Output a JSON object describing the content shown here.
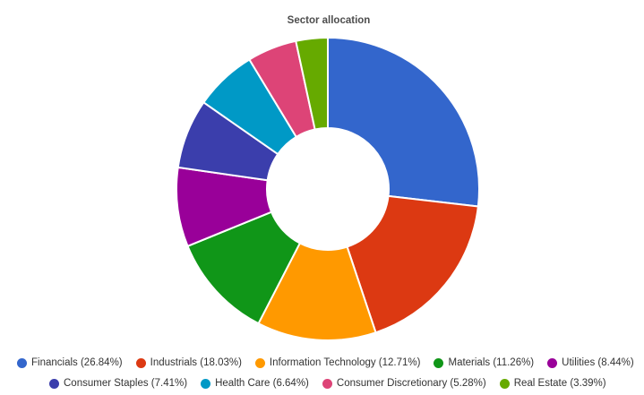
{
  "chart_data": {
    "type": "pie",
    "title": "Sector allocation",
    "donut": true,
    "legend_position": "bottom",
    "slices": [
      {
        "label": "Financials",
        "value": 26.84,
        "legend": "Financials (26.84%)",
        "color": "#3366cc"
      },
      {
        "label": "Industrials",
        "value": 18.03,
        "legend": "Industrials (18.03%)",
        "color": "#dc3912"
      },
      {
        "label": "Information Technology",
        "value": 12.71,
        "legend": "Information Technology (12.71%)",
        "color": "#ff9900"
      },
      {
        "label": "Materials",
        "value": 11.26,
        "legend": "Materials (11.26%)",
        "color": "#109618"
      },
      {
        "label": "Utilities",
        "value": 8.44,
        "legend": "Utilities (8.44%)",
        "color": "#990099"
      },
      {
        "label": "Consumer Staples",
        "value": 7.41,
        "legend": "Consumer Staples (7.41%)",
        "color": "#3b3eac"
      },
      {
        "label": "Health Care",
        "value": 6.64,
        "legend": "Health Care (6.64%)",
        "color": "#0099c6"
      },
      {
        "label": "Consumer Discretionary",
        "value": 5.28,
        "legend": "Consumer Discretionary (5.28%)",
        "color": "#dd4477"
      },
      {
        "label": "Real Estate",
        "value": 3.39,
        "legend": "Real Estate (3.39%)",
        "color": "#66aa00"
      }
    ]
  }
}
